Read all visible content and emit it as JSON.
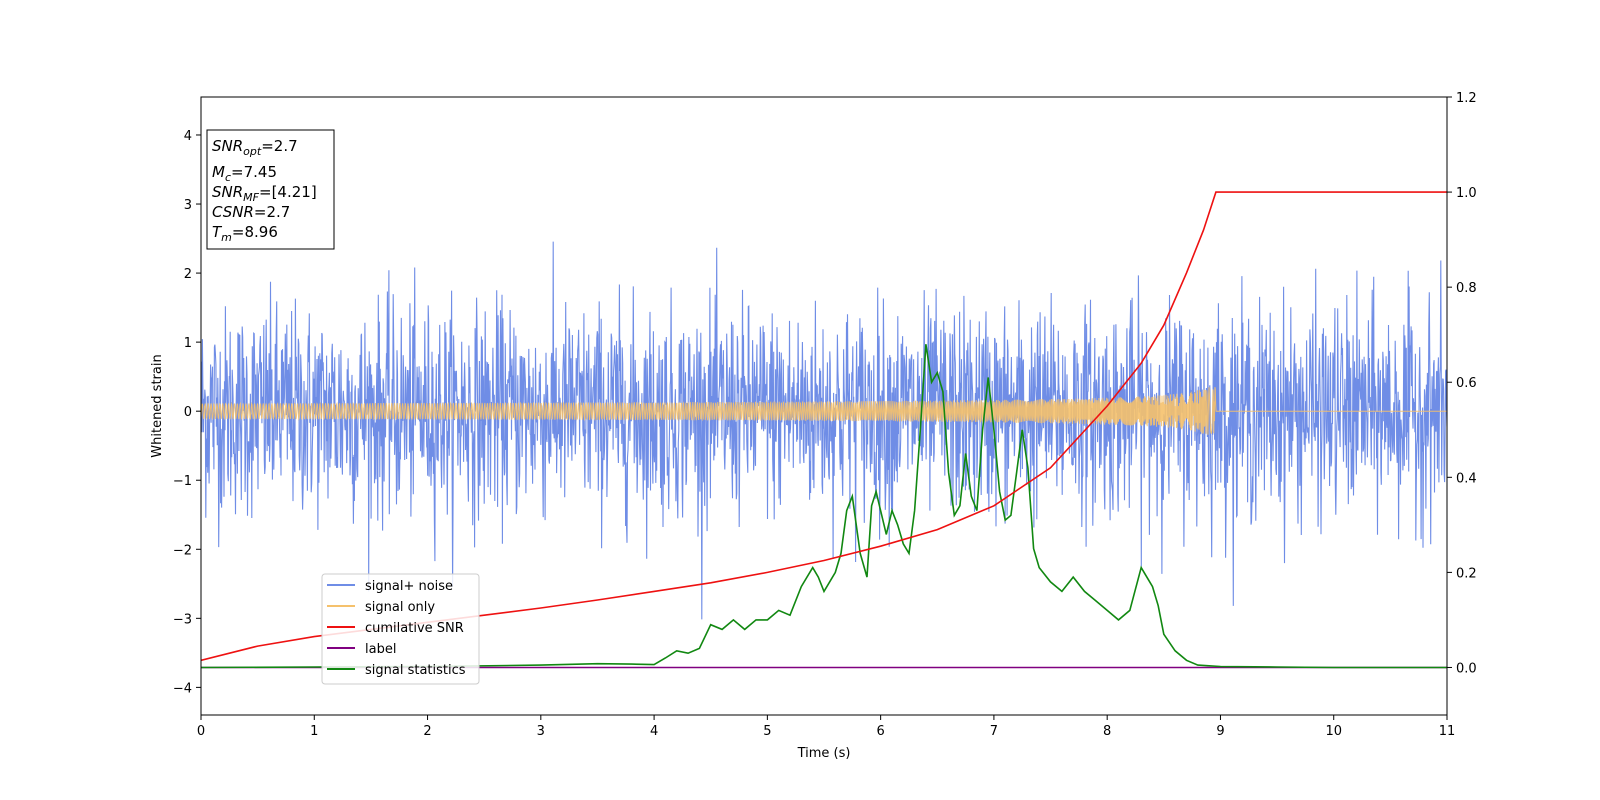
{
  "chart_data": {
    "type": "line",
    "xlabel": "Time (s)",
    "ylabel": "Whitened strain",
    "xlim": [
      0,
      11
    ],
    "ylim": [
      -4.4,
      4.55
    ],
    "y2lim": [
      -0.1,
      1.2
    ],
    "xticks": [
      0,
      1,
      2,
      3,
      4,
      5,
      6,
      7,
      8,
      9,
      10,
      11
    ],
    "yticks": [
      -4,
      -3,
      -2,
      -1,
      0,
      1,
      2,
      3,
      4
    ],
    "y2ticks": [
      0.0,
      0.2,
      0.4,
      0.6,
      0.8,
      1.0,
      1.2
    ],
    "grid": false,
    "legend_position": "lower-left",
    "info_box": [
      {
        "main": "SNR",
        "sub": "opt",
        "val": "=2.7"
      },
      {
        "main": "M",
        "sub": "c",
        "val": "=7.45"
      },
      {
        "main": "SNR",
        "sub": "MF",
        "val": "=[4.21]"
      },
      {
        "main": "CSNR",
        "sub": "",
        "val": "=2.7"
      },
      {
        "main": "T",
        "sub": "m",
        "val": "=8.96"
      }
    ],
    "series": [
      {
        "name": "signal+ noise",
        "color": "#6f8de6",
        "axis": "left",
        "kind": "noise",
        "sigma": 0.75,
        "x_range": [
          0,
          11
        ]
      },
      {
        "name": "signal only",
        "color": "#f5c16c",
        "axis": "left",
        "kind": "chirp",
        "x_range": [
          0,
          8.96
        ],
        "end_amplitude": 0.35
      },
      {
        "name": "cumilative SNR",
        "color": "#ee1111",
        "axis": "right",
        "x": [
          0,
          0.5,
          1,
          1.5,
          2,
          2.5,
          3,
          3.5,
          4,
          4.5,
          5,
          5.5,
          6,
          6.5,
          7,
          7.5,
          8,
          8.3,
          8.5,
          8.7,
          8.85,
          8.96,
          9.0,
          10,
          11
        ],
        "y": [
          0.015,
          0.045,
          0.065,
          0.08,
          0.095,
          0.11,
          0.125,
          0.142,
          0.16,
          0.178,
          0.2,
          0.225,
          0.255,
          0.29,
          0.34,
          0.42,
          0.55,
          0.64,
          0.72,
          0.83,
          0.92,
          1.0,
          1.0,
          1.0,
          1.0
        ]
      },
      {
        "name": "label",
        "color": "#800080",
        "axis": "right",
        "x": [
          0,
          11
        ],
        "y": [
          0,
          0
        ]
      },
      {
        "name": "signal statistics",
        "color": "#118811",
        "axis": "right",
        "x": [
          0,
          1,
          2,
          3,
          3.5,
          3.8,
          4.0,
          4.1,
          4.2,
          4.3,
          4.4,
          4.5,
          4.6,
          4.7,
          4.8,
          4.9,
          5.0,
          5.1,
          5.2,
          5.3,
          5.4,
          5.45,
          5.5,
          5.6,
          5.65,
          5.7,
          5.75,
          5.82,
          5.88,
          5.92,
          5.96,
          6.0,
          6.05,
          6.1,
          6.15,
          6.2,
          6.25,
          6.3,
          6.35,
          6.4,
          6.45,
          6.5,
          6.55,
          6.6,
          6.65,
          6.7,
          6.75,
          6.8,
          6.85,
          6.9,
          6.95,
          7.0,
          7.05,
          7.1,
          7.15,
          7.2,
          7.25,
          7.3,
          7.35,
          7.4,
          7.5,
          7.6,
          7.7,
          7.8,
          7.9,
          8.0,
          8.1,
          8.2,
          8.3,
          8.4,
          8.45,
          8.5,
          8.6,
          8.7,
          8.8,
          9.0,
          9.5,
          10,
          11
        ],
        "y": [
          0.0,
          0.001,
          0.002,
          0.005,
          0.008,
          0.007,
          0.006,
          0.02,
          0.035,
          0.03,
          0.04,
          0.09,
          0.08,
          0.1,
          0.08,
          0.1,
          0.1,
          0.12,
          0.11,
          0.17,
          0.21,
          0.19,
          0.16,
          0.2,
          0.24,
          0.33,
          0.36,
          0.24,
          0.19,
          0.34,
          0.37,
          0.33,
          0.28,
          0.33,
          0.3,
          0.26,
          0.24,
          0.33,
          0.5,
          0.68,
          0.6,
          0.62,
          0.58,
          0.41,
          0.32,
          0.34,
          0.45,
          0.36,
          0.33,
          0.5,
          0.61,
          0.5,
          0.37,
          0.31,
          0.32,
          0.41,
          0.5,
          0.42,
          0.25,
          0.21,
          0.18,
          0.16,
          0.19,
          0.16,
          0.14,
          0.12,
          0.1,
          0.12,
          0.21,
          0.17,
          0.13,
          0.07,
          0.035,
          0.015,
          0.005,
          0.002,
          0.001,
          0.0,
          0.0
        ]
      }
    ]
  }
}
